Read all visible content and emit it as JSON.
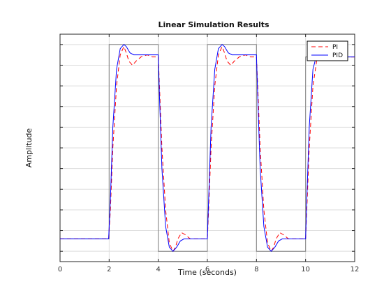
{
  "chart_data": {
    "type": "line",
    "title": "Linear Simulation Results",
    "xlabel": "Time (seconds)",
    "ylabel": "Amplitude",
    "xlim": [
      0,
      12
    ],
    "ylim": [
      -0.05,
      1.05
    ],
    "x_ticks": [
      0,
      2,
      4,
      6,
      8,
      10,
      12
    ],
    "y_tick_values": [
      0.0,
      0.1,
      0.2,
      0.3,
      0.4,
      0.5,
      0.6,
      0.7,
      0.8,
      0.9,
      1.0
    ],
    "y_tick_labels_visible": false,
    "grid": true,
    "legend_position": "top-right",
    "input_signal": {
      "color": "#808080",
      "x": [
        0,
        2,
        2,
        4,
        4,
        6,
        6,
        8,
        8,
        10,
        10,
        12
      ],
      "y": [
        0.06,
        0.06,
        1.0,
        1.0,
        0.0,
        0.0,
        1.0,
        1.0,
        0.0,
        0.0,
        0.94,
        0.94
      ]
    },
    "series": [
      {
        "name": "PI",
        "color": "#ff0000",
        "dash": "dashed",
        "x": [
          0,
          1.98,
          2.05,
          2.15,
          2.3,
          2.45,
          2.6,
          2.7,
          2.8,
          2.95,
          3.1,
          3.3,
          3.55,
          3.75,
          4.0,
          4.05,
          4.15,
          4.3,
          4.45,
          4.6,
          4.7,
          4.8,
          4.95,
          5.1,
          5.3,
          5.55,
          5.75,
          6.0,
          6.05,
          6.15,
          6.3,
          6.45,
          6.6,
          6.7,
          6.8,
          6.95,
          7.1,
          7.3,
          7.55,
          7.75,
          8.0,
          8.05,
          8.15,
          8.3,
          8.45,
          8.6,
          8.7,
          8.8,
          8.95,
          9.1,
          9.3,
          9.55,
          9.75,
          10.0,
          10.05,
          10.15,
          10.3,
          10.45,
          10.6,
          10.75,
          10.95,
          11.2,
          11.5,
          12.0
        ],
        "y": [
          0.06,
          0.06,
          0.2,
          0.5,
          0.8,
          0.95,
          0.99,
          0.96,
          0.92,
          0.9,
          0.92,
          0.94,
          0.95,
          0.94,
          0.94,
          0.8,
          0.5,
          0.2,
          0.04,
          0.0,
          0.02,
          0.06,
          0.09,
          0.08,
          0.06,
          0.06,
          0.06,
          0.06,
          0.2,
          0.5,
          0.8,
          0.95,
          0.99,
          0.96,
          0.92,
          0.9,
          0.92,
          0.94,
          0.95,
          0.94,
          0.94,
          0.8,
          0.5,
          0.2,
          0.04,
          0.0,
          0.02,
          0.06,
          0.09,
          0.08,
          0.06,
          0.06,
          0.06,
          0.06,
          0.2,
          0.5,
          0.8,
          0.92,
          0.95,
          0.95,
          0.94,
          0.94,
          0.94,
          0.94
        ]
      },
      {
        "name": "PID",
        "color": "#0000ff",
        "dash": "solid",
        "x": [
          0,
          1.98,
          2.05,
          2.15,
          2.3,
          2.45,
          2.6,
          2.7,
          2.85,
          3.0,
          3.2,
          3.5,
          3.75,
          4.0,
          4.05,
          4.15,
          4.3,
          4.45,
          4.6,
          4.75,
          4.9,
          5.05,
          5.25,
          5.5,
          5.75,
          6.0,
          6.05,
          6.15,
          6.3,
          6.45,
          6.6,
          6.7,
          6.85,
          7.0,
          7.2,
          7.5,
          7.75,
          8.0,
          8.05,
          8.15,
          8.3,
          8.45,
          8.6,
          8.75,
          8.9,
          9.05,
          9.25,
          9.5,
          9.75,
          10.0,
          10.05,
          10.15,
          10.3,
          10.45,
          10.6,
          10.8,
          11.0,
          11.3,
          12.0
        ],
        "y": [
          0.06,
          0.06,
          0.25,
          0.6,
          0.88,
          0.98,
          1.0,
          0.99,
          0.96,
          0.95,
          0.95,
          0.95,
          0.95,
          0.95,
          0.75,
          0.4,
          0.12,
          0.02,
          0.0,
          0.02,
          0.05,
          0.06,
          0.06,
          0.06,
          0.06,
          0.06,
          0.25,
          0.6,
          0.88,
          0.98,
          1.0,
          0.99,
          0.96,
          0.95,
          0.95,
          0.95,
          0.95,
          0.95,
          0.75,
          0.4,
          0.12,
          0.02,
          0.0,
          0.02,
          0.05,
          0.06,
          0.06,
          0.06,
          0.06,
          0.06,
          0.25,
          0.6,
          0.88,
          0.95,
          0.95,
          0.94,
          0.94,
          0.94,
          0.94
        ]
      }
    ]
  }
}
